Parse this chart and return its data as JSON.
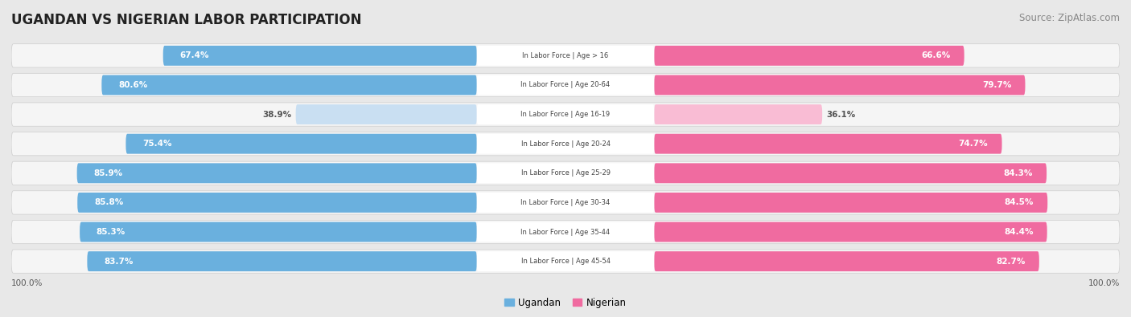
{
  "title": "UGANDAN VS NIGERIAN LABOR PARTICIPATION",
  "source": "Source: ZipAtlas.com",
  "categories": [
    "In Labor Force | Age > 16",
    "In Labor Force | Age 20-64",
    "In Labor Force | Age 16-19",
    "In Labor Force | Age 20-24",
    "In Labor Force | Age 25-29",
    "In Labor Force | Age 30-34",
    "In Labor Force | Age 35-44",
    "In Labor Force | Age 45-54"
  ],
  "ugandan": [
    67.4,
    80.6,
    38.9,
    75.4,
    85.9,
    85.8,
    85.3,
    83.7
  ],
  "nigerian": [
    66.6,
    79.7,
    36.1,
    74.7,
    84.3,
    84.5,
    84.4,
    82.7
  ],
  "ugandan_color": "#6ab0de",
  "ugandan_light_color": "#c9dff2",
  "nigerian_color": "#f06ba0",
  "nigerian_light_color": "#f9bcd4",
  "bg_color": "#e8e8e8",
  "row_bg_color": "#f5f5f5",
  "label_text_color": "#444444",
  "value_text_white": "#ffffff",
  "value_text_dark": "#555555",
  "max_value": 100.0,
  "legend_ugandan": "Ugandan",
  "legend_nigerian": "Nigerian",
  "center_label_bg": "#ffffff"
}
